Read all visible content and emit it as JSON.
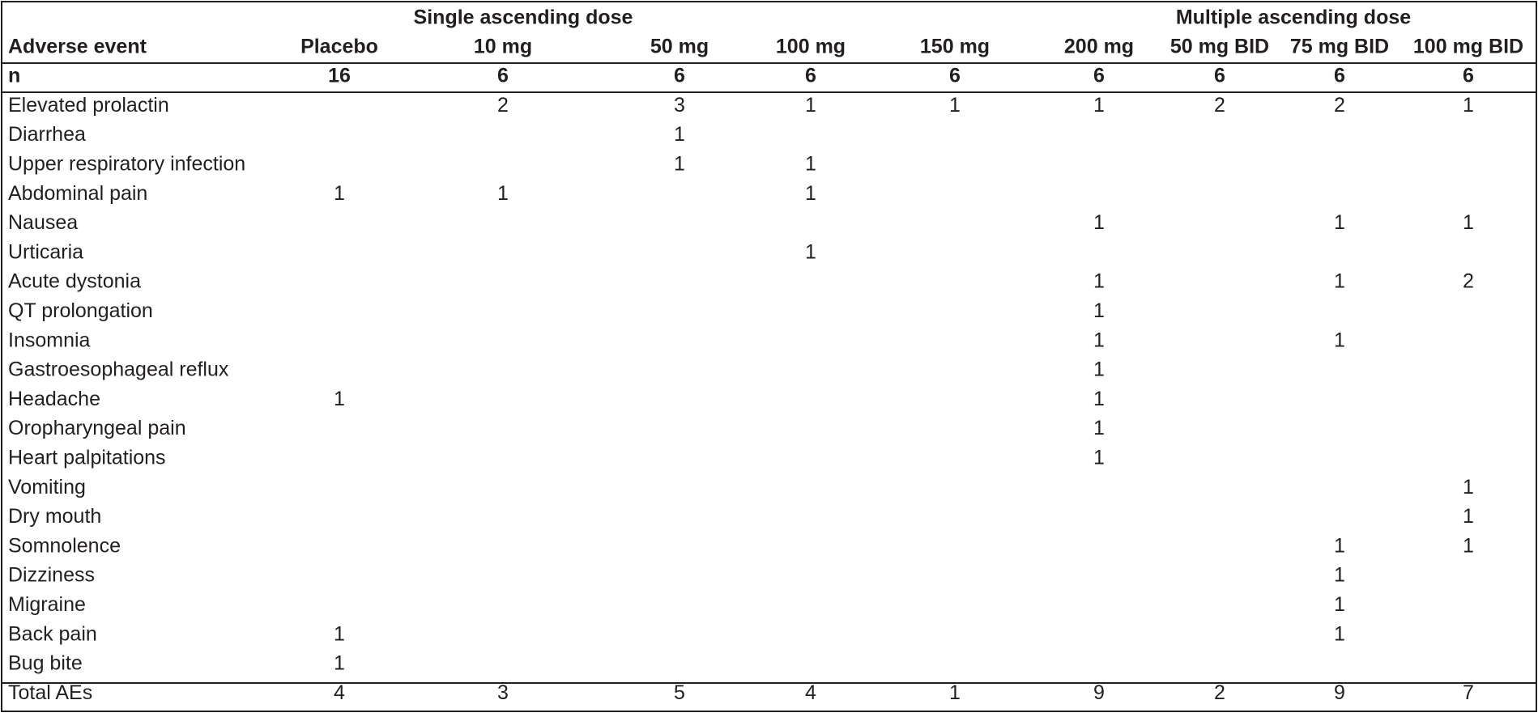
{
  "table": {
    "group_headers": [
      "Single ascending dose",
      "Multiple ascending dose"
    ],
    "columns": [
      "Adverse event",
      "Placebo",
      "10 mg",
      "50 mg",
      "100 mg",
      "150 mg",
      "200 mg",
      "50 mg BID",
      "75 mg BID",
      "100 mg BID"
    ],
    "n": {
      "label": "n",
      "values": [
        16,
        6,
        6,
        6,
        6,
        6,
        6,
        6,
        6
      ]
    },
    "rows": [
      {
        "event": "Elevated prolactin",
        "counts": [
          null,
          2,
          3,
          1,
          1,
          1,
          2,
          2,
          1
        ]
      },
      {
        "event": "Diarrhea",
        "counts": [
          null,
          null,
          1,
          null,
          null,
          null,
          null,
          null,
          null
        ]
      },
      {
        "event": "Upper respiratory infection",
        "counts": [
          null,
          null,
          1,
          1,
          null,
          null,
          null,
          null,
          null
        ]
      },
      {
        "event": "Abdominal pain",
        "counts": [
          1,
          1,
          null,
          1,
          null,
          null,
          null,
          null,
          null
        ]
      },
      {
        "event": "Nausea",
        "counts": [
          null,
          null,
          null,
          null,
          null,
          1,
          null,
          1,
          1
        ]
      },
      {
        "event": "Urticaria",
        "counts": [
          null,
          null,
          null,
          1,
          null,
          null,
          null,
          null,
          null
        ]
      },
      {
        "event": "Acute dystonia",
        "counts": [
          null,
          null,
          null,
          null,
          null,
          1,
          null,
          1,
          2
        ]
      },
      {
        "event": "QT prolongation",
        "counts": [
          null,
          null,
          null,
          null,
          null,
          1,
          null,
          null,
          null
        ]
      },
      {
        "event": "Insomnia",
        "counts": [
          null,
          null,
          null,
          null,
          null,
          1,
          null,
          1,
          null
        ]
      },
      {
        "event": "Gastroesophageal reflux",
        "counts": [
          null,
          null,
          null,
          null,
          null,
          1,
          null,
          null,
          null
        ]
      },
      {
        "event": "Headache",
        "counts": [
          1,
          null,
          null,
          null,
          null,
          1,
          null,
          null,
          null
        ]
      },
      {
        "event": "Oropharyngeal pain",
        "counts": [
          null,
          null,
          null,
          null,
          null,
          1,
          null,
          null,
          null
        ]
      },
      {
        "event": "Heart palpitations",
        "counts": [
          null,
          null,
          null,
          null,
          null,
          1,
          null,
          null,
          null
        ]
      },
      {
        "event": "Vomiting",
        "counts": [
          null,
          null,
          null,
          null,
          null,
          null,
          null,
          null,
          1
        ]
      },
      {
        "event": "Dry mouth",
        "counts": [
          null,
          null,
          null,
          null,
          null,
          null,
          null,
          null,
          1
        ]
      },
      {
        "event": "Somnolence",
        "counts": [
          null,
          null,
          null,
          null,
          null,
          null,
          null,
          1,
          1
        ]
      },
      {
        "event": "Dizziness",
        "counts": [
          null,
          null,
          null,
          null,
          null,
          null,
          null,
          1,
          null
        ]
      },
      {
        "event": "Migraine",
        "counts": [
          null,
          null,
          null,
          null,
          null,
          null,
          null,
          1,
          null
        ]
      },
      {
        "event": "Back pain",
        "counts": [
          1,
          null,
          null,
          null,
          null,
          null,
          null,
          1,
          null
        ]
      },
      {
        "event": "Bug bite",
        "counts": [
          1,
          null,
          null,
          null,
          null,
          null,
          null,
          null,
          null
        ]
      }
    ],
    "total": {
      "label": "Total AEs",
      "values": [
        4,
        3,
        5,
        4,
        1,
        9,
        2,
        9,
        7
      ]
    }
  }
}
